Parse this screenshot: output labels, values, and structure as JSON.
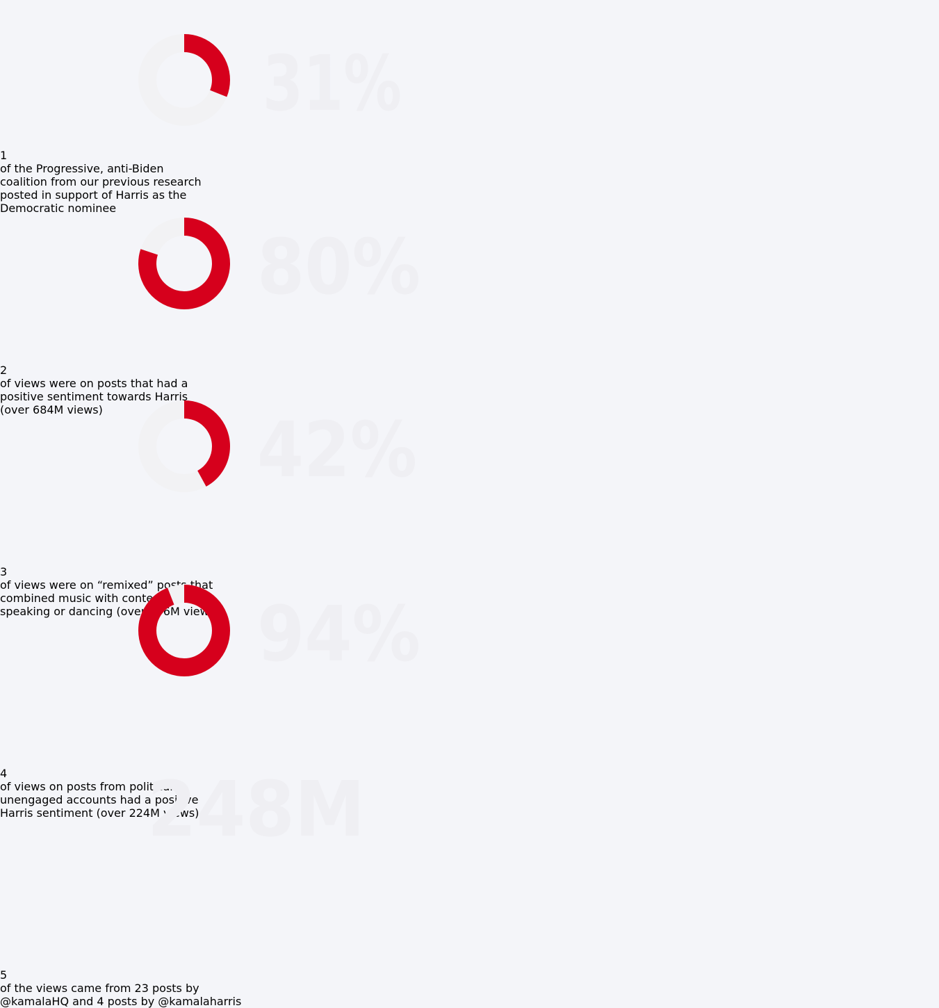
{
  "items": [
    {
      "number": 1,
      "figure": "31%",
      "share": 31,
      "lines": [
        [
          {
            "text": "of the Progressive, anti-Biden",
            "style": "medium"
          }
        ],
        [
          {
            "text": "coalition",
            "style": "medium"
          },
          {
            "text": " from our "
          },
          {
            "text": "previous research",
            "style": "underline"
          }
        ],
        [
          {
            "text": "posted "
          },
          {
            "text": "in support of Harris",
            "style": "bold"
          },
          {
            "text": " as the"
          }
        ],
        [
          {
            "text": "Democratic nominee"
          }
        ]
      ]
    },
    {
      "number": 2,
      "figure": "80%",
      "share": 80,
      "lines": [
        [
          {
            "text": "of views were on posts that had a"
          }
        ],
        [
          {
            "text": "positive sentiment towards Harris",
            "style": "bold"
          }
        ],
        [
          {
            "text": "(over 684M views)"
          }
        ]
      ]
    },
    {
      "number": 3,
      "figure": "42%",
      "share": 42,
      "lines": [
        [
          {
            "text": "of views were on “"
          },
          {
            "text": "remixed",
            "style": "bold"
          },
          {
            "text": "” posts that"
          }
        ],
        [
          {
            "text": "combined music with content of Harris"
          }
        ],
        [
          {
            "text": "speaking or dancing (over 356M views)"
          }
        ]
      ]
    },
    {
      "number": 4,
      "figure": "94%",
      "share": 94,
      "lines": [
        [
          {
            "text": "of views on posts from politically"
          }
        ],
        [
          {
            "text": "unengaged accounts had a "
          },
          {
            "text": "positive",
            "style": "bold"
          }
        ],
        [
          {
            "text": "Harris sentiment",
            "style": "bold"
          },
          {
            "text": " (over 224M views)"
          }
        ]
      ]
    },
    {
      "number": 5,
      "figure": "248M",
      "lines": [
        [
          {
            "text": "of the views came from 23 posts by"
          }
        ],
        [
          {
            "text": "@kamalaHQ",
            "style": "bold"
          },
          {
            "text": " and 4 posts by "
          },
          {
            "text": "@kamalaharris",
            "style": "bold"
          }
        ]
      ]
    }
  ]
}
